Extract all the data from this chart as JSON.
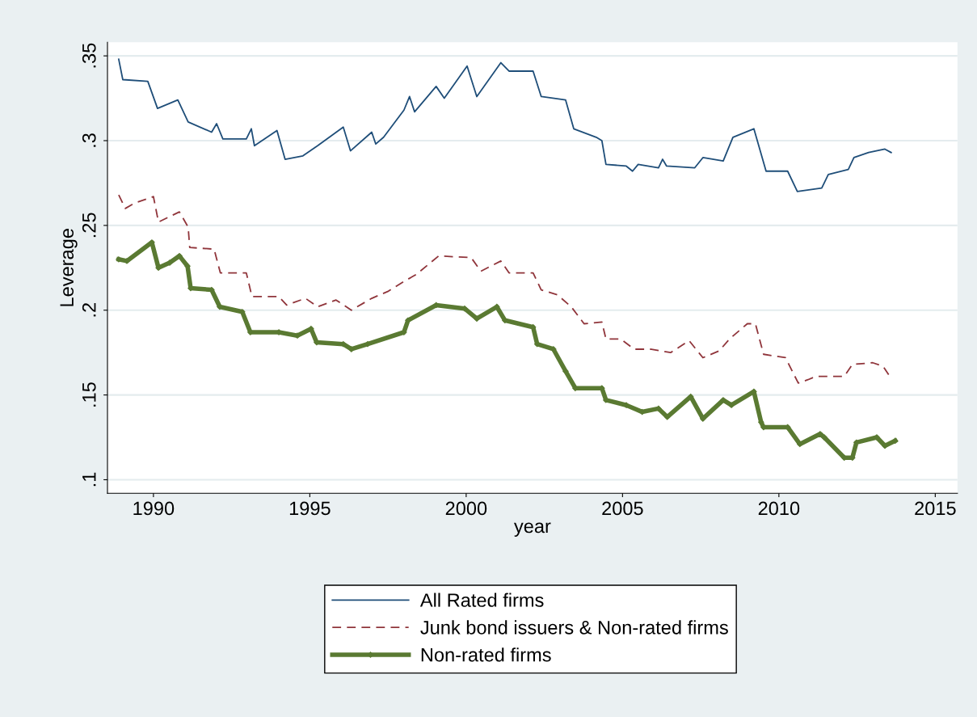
{
  "chart_data": {
    "type": "line",
    "xlabel": "year",
    "ylabel": "Leverage",
    "xlim": [
      1988.53,
      2015.71
    ],
    "xticks": [
      1990,
      1995,
      2000,
      2005,
      2010,
      2015
    ],
    "ylim": [
      0.092,
      0.358
    ],
    "yticks": [
      {
        "value": 0.1,
        "label": ".1"
      },
      {
        "value": 0.15,
        "label": ".15"
      },
      {
        "value": 0.2,
        "label": ".2"
      },
      {
        "value": 0.25,
        "label": ".25"
      },
      {
        "value": 0.3,
        "label": ".3"
      },
      {
        "value": 0.35,
        "label": ".35"
      }
    ],
    "grid": "y",
    "legend": "bottom",
    "series": [
      {
        "name": "All Rated firms",
        "color": "#1f4e79",
        "line_style": "solid",
        "marker": "none",
        "x": [
          1988.89,
          1989.02,
          1989.82,
          1990.13,
          1990.78,
          1991.11,
          1991.86,
          1992.02,
          1992.22,
          1992.97,
          1993.13,
          1993.23,
          1993.95,
          1994.21,
          1994.78,
          1995.25,
          1996.07,
          1996.3,
          1996.98,
          1997.11,
          1997.36,
          1998.01,
          1998.19,
          1998.35,
          1999.04,
          1999.3,
          2000.03,
          2000.34,
          2001.11,
          2001.37,
          2002.14,
          2002.4,
          2003.18,
          2003.44,
          2004.16,
          2004.34,
          2004.47,
          2005.12,
          2005.32,
          2005.5,
          2006.15,
          2006.28,
          2006.41,
          2007.31,
          2007.57,
          2008.22,
          2008.53,
          2009.2,
          2009.59,
          2010.28,
          2010.59,
          2011.37,
          2011.58,
          2012.22,
          2012.4,
          2012.87,
          2013.39,
          2013.59
        ],
        "values": [
          0.348,
          0.336,
          0.335,
          0.319,
          0.324,
          0.311,
          0.305,
          0.31,
          0.301,
          0.301,
          0.307,
          0.297,
          0.306,
          0.289,
          0.291,
          0.297,
          0.308,
          0.294,
          0.305,
          0.298,
          0.302,
          0.318,
          0.326,
          0.317,
          0.332,
          0.325,
          0.344,
          0.326,
          0.346,
          0.341,
          0.341,
          0.326,
          0.324,
          0.307,
          0.302,
          0.3,
          0.286,
          0.285,
          0.282,
          0.286,
          0.284,
          0.289,
          0.285,
          0.284,
          0.29,
          0.288,
          0.302,
          0.307,
          0.282,
          0.282,
          0.27,
          0.272,
          0.28,
          0.283,
          0.29,
          0.293,
          0.295,
          0.293
        ]
      },
      {
        "name": "Junk bond issuers & Non-rated firms",
        "color": "#90353b",
        "line_style": "dashed",
        "marker": "none",
        "x": [
          1988.89,
          1989.1,
          1989.38,
          1990.0,
          1990.16,
          1990.83,
          1991.11,
          1991.16,
          1991.94,
          1992.14,
          1992.97,
          1993.15,
          1994.01,
          1994.26,
          1994.86,
          1995.25,
          1995.84,
          1996.33,
          1996.98,
          1997.49,
          1998.01,
          1998.4,
          1999.12,
          2000.16,
          2000.47,
          2001.11,
          2001.37,
          2002.14,
          2002.4,
          2002.92,
          2003.36,
          2003.77,
          2004.34,
          2004.47,
          2004.94,
          2005.37,
          2005.89,
          2006.54,
          2007.13,
          2007.57,
          2008.09,
          2008.42,
          2008.99,
          2009.25,
          2009.51,
          2010.21,
          2010.62,
          2010.93,
          2011.19,
          2012.09,
          2012.35,
          2013.0,
          2013.33,
          2013.51
        ],
        "values": [
          0.268,
          0.26,
          0.263,
          0.267,
          0.252,
          0.258,
          0.249,
          0.237,
          0.236,
          0.222,
          0.222,
          0.208,
          0.208,
          0.203,
          0.207,
          0.202,
          0.206,
          0.2,
          0.207,
          0.211,
          0.217,
          0.221,
          0.232,
          0.231,
          0.223,
          0.229,
          0.222,
          0.222,
          0.212,
          0.209,
          0.202,
          0.192,
          0.193,
          0.183,
          0.183,
          0.177,
          0.177,
          0.175,
          0.182,
          0.172,
          0.176,
          0.183,
          0.192,
          0.192,
          0.174,
          0.172,
          0.157,
          0.159,
          0.161,
          0.161,
          0.168,
          0.169,
          0.167,
          0.162
        ]
      },
      {
        "name": "Non-rated firms",
        "color": "#5a7a32",
        "line_style": "solid",
        "marker": "diamond",
        "x": [
          1988.89,
          1989.15,
          1989.95,
          1990.16,
          1990.52,
          1990.83,
          1991.09,
          1991.19,
          1991.86,
          1992.12,
          1992.84,
          1993.1,
          1994.01,
          1994.6,
          1995.04,
          1995.22,
          1996.07,
          1996.33,
          1996.85,
          1998.01,
          1998.14,
          1999.04,
          1999.95,
          2000.34,
          2000.98,
          2001.24,
          2002.14,
          2002.27,
          2002.79,
          2003.18,
          2003.49,
          2004.34,
          2004.47,
          2005.12,
          2005.63,
          2006.15,
          2006.43,
          2007.18,
          2007.57,
          2008.22,
          2008.48,
          2009.2,
          2009.43,
          2009.51,
          2010.28,
          2010.67,
          2011.32,
          2011.45,
          2012.09,
          2012.35,
          2012.48,
          2013.13,
          2013.39,
          2013.72
        ],
        "values": [
          0.23,
          0.229,
          0.24,
          0.225,
          0.228,
          0.232,
          0.226,
          0.213,
          0.212,
          0.202,
          0.199,
          0.187,
          0.187,
          0.185,
          0.189,
          0.181,
          0.18,
          0.177,
          0.18,
          0.187,
          0.194,
          0.203,
          0.201,
          0.195,
          0.202,
          0.194,
          0.19,
          0.18,
          0.177,
          0.164,
          0.154,
          0.154,
          0.147,
          0.144,
          0.14,
          0.142,
          0.137,
          0.149,
          0.136,
          0.147,
          0.144,
          0.152,
          0.134,
          0.131,
          0.131,
          0.121,
          0.127,
          0.125,
          0.113,
          0.113,
          0.122,
          0.125,
          0.12,
          0.123
        ]
      }
    ]
  }
}
